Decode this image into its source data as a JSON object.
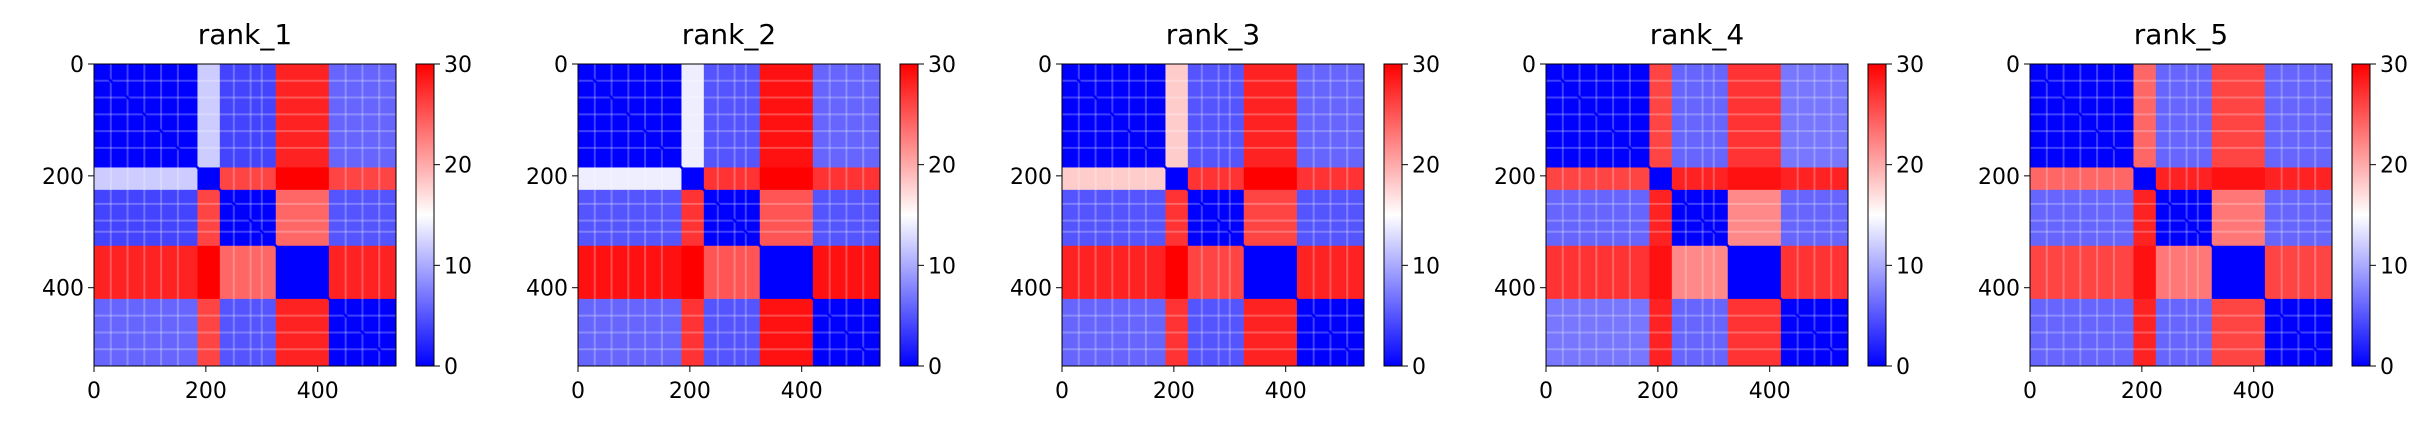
{
  "chart_data": [
    {
      "type": "heatmap",
      "title": "rank_1",
      "xlim": [
        0,
        540
      ],
      "ylim": [
        540,
        0
      ],
      "xticks": [
        0,
        200,
        400
      ],
      "yticks": [
        0,
        200,
        400
      ],
      "colorbar": {
        "min": 0,
        "max": 30,
        "ticks": [
          0,
          10,
          20,
          30
        ],
        "colors": [
          "#0000ff",
          "#ffffff",
          "#ff0000"
        ]
      },
      "domains": [
        [
          0,
          185
        ],
        [
          185,
          225
        ],
        [
          225,
          325
        ],
        [
          325,
          420
        ],
        [
          420,
          540
        ]
      ],
      "domain_distance": [
        [
          0,
          12,
          4,
          28,
          6
        ],
        [
          12,
          0,
          26,
          30,
          26
        ],
        [
          4,
          26,
          0,
          24,
          5
        ],
        [
          28,
          30,
          24,
          0,
          28
        ],
        [
          6,
          26,
          5,
          28,
          0
        ]
      ]
    },
    {
      "type": "heatmap",
      "title": "rank_2",
      "xlim": [
        0,
        540
      ],
      "ylim": [
        540,
        0
      ],
      "xticks": [
        0,
        200,
        400
      ],
      "yticks": [
        0,
        200,
        400
      ],
      "colorbar": {
        "min": 0,
        "max": 30,
        "ticks": [
          0,
          10,
          20,
          30
        ],
        "colors": [
          "#0000ff",
          "#ffffff",
          "#ff0000"
        ]
      },
      "domains": [
        [
          0,
          185
        ],
        [
          185,
          225
        ],
        [
          225,
          325
        ],
        [
          325,
          420
        ],
        [
          420,
          540
        ]
      ],
      "domain_distance": [
        [
          0,
          14,
          5,
          29,
          6
        ],
        [
          14,
          0,
          27,
          30,
          27
        ],
        [
          5,
          27,
          0,
          25,
          5
        ],
        [
          29,
          30,
          25,
          0,
          29
        ],
        [
          6,
          27,
          5,
          29,
          0
        ]
      ]
    },
    {
      "type": "heatmap",
      "title": "rank_3",
      "xlim": [
        0,
        540
      ],
      "ylim": [
        540,
        0
      ],
      "xticks": [
        0,
        200,
        400
      ],
      "yticks": [
        0,
        200,
        400
      ],
      "colorbar": {
        "min": 0,
        "max": 30,
        "ticks": [
          0,
          10,
          20,
          30
        ],
        "colors": [
          "#0000ff",
          "#ffffff",
          "#ff0000"
        ]
      },
      "domains": [
        [
          0,
          185
        ],
        [
          185,
          225
        ],
        [
          225,
          325
        ],
        [
          325,
          420
        ],
        [
          420,
          540
        ]
      ],
      "domain_distance": [
        [
          0,
          18,
          5,
          28,
          6
        ],
        [
          18,
          0,
          27,
          30,
          27
        ],
        [
          5,
          27,
          0,
          26,
          5
        ],
        [
          28,
          30,
          26,
          0,
          28
        ],
        [
          6,
          27,
          5,
          28,
          0
        ]
      ]
    },
    {
      "type": "heatmap",
      "title": "rank_4",
      "xlim": [
        0,
        540
      ],
      "ylim": [
        540,
        0
      ],
      "xticks": [
        0,
        200,
        400
      ],
      "yticks": [
        0,
        200,
        400
      ],
      "colorbar": {
        "min": 0,
        "max": 30,
        "ticks": [
          0,
          10,
          20,
          30
        ],
        "colors": [
          "#0000ff",
          "#ffffff",
          "#ff0000"
        ]
      },
      "domains": [
        [
          0,
          185
        ],
        [
          185,
          225
        ],
        [
          225,
          325
        ],
        [
          325,
          420
        ],
        [
          420,
          540
        ]
      ],
      "domain_distance": [
        [
          0,
          26,
          6,
          27,
          7
        ],
        [
          26,
          0,
          28,
          29,
          28
        ],
        [
          6,
          28,
          0,
          22,
          6
        ],
        [
          27,
          29,
          22,
          0,
          27
        ],
        [
          7,
          28,
          6,
          27,
          0
        ]
      ]
    },
    {
      "type": "heatmap",
      "title": "rank_5",
      "xlim": [
        0,
        540
      ],
      "ylim": [
        540,
        0
      ],
      "xticks": [
        0,
        200,
        400
      ],
      "yticks": [
        0,
        200,
        400
      ],
      "colorbar": {
        "min": 0,
        "max": 30,
        "ticks": [
          0,
          10,
          20,
          30
        ],
        "colors": [
          "#0000ff",
          "#ffffff",
          "#ff0000"
        ]
      },
      "domains": [
        [
          0,
          185
        ],
        [
          185,
          225
        ],
        [
          225,
          325
        ],
        [
          325,
          420
        ],
        [
          420,
          540
        ]
      ],
      "domain_distance": [
        [
          0,
          24,
          6,
          26,
          6
        ],
        [
          24,
          0,
          28,
          29,
          28
        ],
        [
          6,
          28,
          0,
          23,
          6
        ],
        [
          26,
          29,
          23,
          0,
          26
        ],
        [
          6,
          28,
          6,
          26,
          0
        ]
      ]
    }
  ]
}
